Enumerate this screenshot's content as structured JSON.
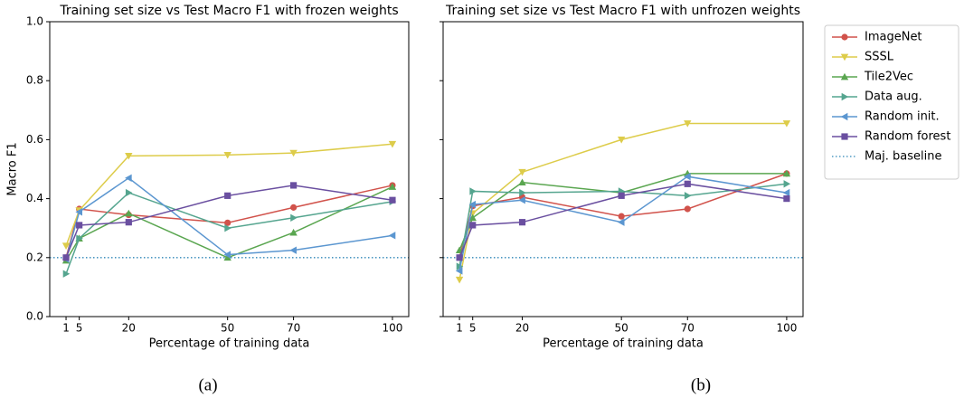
{
  "chart_data": [
    {
      "type": "line",
      "title": "Training set size vs Test Macro F1 with frozen weights",
      "x_label": "Percentage of training data",
      "y_label": "Macro F1",
      "caption": "(a)",
      "x": [
        1,
        5,
        20,
        50,
        70,
        100
      ],
      "xlim": [
        -3.95,
        104.95
      ],
      "xticks": [
        1,
        5,
        20,
        50,
        70,
        100
      ],
      "ylim": [
        0,
        1
      ],
      "yticks": [
        {
          "value": 0,
          "label": "0.0"
        },
        {
          "value": 0.2,
          "label": "0.2"
        },
        {
          "value": 0.4,
          "label": "0.4"
        },
        {
          "value": 0.6,
          "label": "0.6"
        },
        {
          "value": 0.8,
          "label": "0.8"
        },
        {
          "value": 1,
          "label": "1.0"
        }
      ],
      "series": [
        {
          "name": "ImageNet",
          "color": "#d1524b",
          "marker": "circle",
          "values": [
            0.2,
            0.365,
            0.345,
            0.318,
            0.37,
            0.445
          ]
        },
        {
          "name": "SSSL",
          "color": "#ddcc4a",
          "marker": "triangle-down",
          "values": [
            0.24,
            0.36,
            0.545,
            0.548,
            0.555,
            0.585
          ]
        },
        {
          "name": "Tile2Vec",
          "color": "#5aa650",
          "marker": "triangle-up",
          "values": [
            0.19,
            0.265,
            0.35,
            0.2,
            0.285,
            0.44
          ]
        },
        {
          "name": "Data aug.",
          "color": "#55a58f",
          "marker": "triangle-right",
          "values": [
            0.145,
            0.265,
            0.42,
            0.3,
            0.335,
            0.39
          ]
        },
        {
          "name": "Random init.",
          "color": "#5b96d0",
          "marker": "triangle-left",
          "values": [
            0.195,
            0.355,
            0.47,
            0.21,
            0.225,
            0.275
          ]
        },
        {
          "name": "Random forest",
          "color": "#6a4fa0",
          "marker": "square",
          "values": [
            0.2,
            0.31,
            0.32,
            0.41,
            0.445,
            0.395
          ]
        }
      ],
      "hlines": [
        {
          "name": "Maj. baseline",
          "value": 0.2,
          "color": "#2f86b8",
          "style": "dotted"
        }
      ]
    },
    {
      "type": "line",
      "title": "Training set size vs Test Macro F1 with unfrozen weights",
      "x_label": "Percentage of training data",
      "caption": "(b)",
      "x": [
        1,
        5,
        20,
        50,
        70,
        100
      ],
      "xlim": [
        -3.95,
        104.95
      ],
      "xticks": [
        1,
        5,
        20,
        50,
        70,
        100
      ],
      "ylim": [
        0,
        1
      ],
      "sharey": true,
      "legend": "outside right",
      "series": [
        {
          "name": "ImageNet",
          "color": "#d1524b",
          "marker": "circle",
          "values": [
            0.2,
            0.375,
            0.405,
            0.34,
            0.365,
            0.485
          ]
        },
        {
          "name": "SSSL",
          "color": "#ddcc4a",
          "marker": "triangle-down",
          "values": [
            0.125,
            0.35,
            0.49,
            0.6,
            0.655,
            0.655
          ]
        },
        {
          "name": "Tile2Vec",
          "color": "#5aa650",
          "marker": "triangle-up",
          "values": [
            0.225,
            0.335,
            0.455,
            0.42,
            0.485,
            0.485
          ]
        },
        {
          "name": "Data aug.",
          "color": "#55a58f",
          "marker": "triangle-right",
          "values": [
            0.17,
            0.425,
            0.42,
            0.425,
            0.41,
            0.45
          ]
        },
        {
          "name": "Random init.",
          "color": "#5b96d0",
          "marker": "triangle-left",
          "values": [
            0.155,
            0.38,
            0.395,
            0.32,
            0.475,
            0.42
          ]
        },
        {
          "name": "Random forest",
          "color": "#6a4fa0",
          "marker": "square",
          "values": [
            0.2,
            0.31,
            0.32,
            0.41,
            0.45,
            0.4
          ]
        }
      ],
      "hlines": [
        {
          "name": "Maj. baseline",
          "value": 0.2,
          "color": "#2f86b8",
          "style": "dotted"
        }
      ]
    }
  ]
}
